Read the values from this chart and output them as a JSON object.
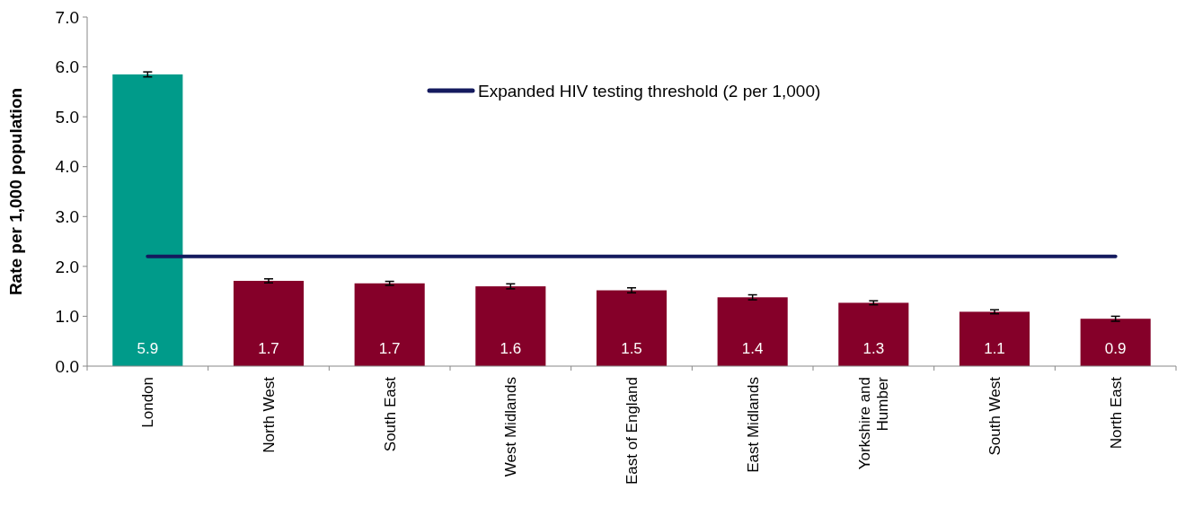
{
  "chart_data": {
    "type": "bar",
    "ylabel": "Rate per 1,000 population",
    "categories": [
      "London",
      "North West",
      "South East",
      "West Midlands",
      "East of England",
      "East Midlands",
      "Yorkshire and Humber",
      "South West",
      "North East"
    ],
    "series": [
      {
        "colors": [
          "#009b8a",
          "#850029",
          "#850029",
          "#850029",
          "#850029",
          "#850029",
          "#850029",
          "#850029",
          "#850029"
        ],
        "values": [
          5.85,
          1.71,
          1.66,
          1.6,
          1.52,
          1.38,
          1.27,
          1.09,
          0.95
        ],
        "errors": [
          0.05,
          0.04,
          0.04,
          0.05,
          0.05,
          0.05,
          0.04,
          0.04,
          0.05
        ],
        "value_labels": [
          "5.9",
          "1.7",
          "1.7",
          "1.6",
          "1.5",
          "1.4",
          "1.3",
          "1.1",
          "0.9"
        ]
      },
      {
        "type": "line",
        "name": "Expanded HIV testing threshold (2 per 1,000)",
        "color": "#141a5e",
        "values": [
          2.2,
          2.2,
          2.2,
          2.2,
          2.2,
          2.2,
          2.2,
          2.2,
          2.2
        ]
      }
    ],
    "ylim": [
      0,
      7
    ],
    "yticks": [
      {
        "value": 0,
        "label": "0.0"
      },
      {
        "value": 1,
        "label": "1.0"
      },
      {
        "value": 2,
        "label": "2.0"
      },
      {
        "value": 3,
        "label": "3.0"
      },
      {
        "value": 4,
        "label": "4.0"
      },
      {
        "value": 5,
        "label": "5.0"
      },
      {
        "value": 6,
        "label": "6.0"
      },
      {
        "value": 7,
        "label": "7.0"
      }
    ],
    "grid": false,
    "legend": "top"
  }
}
